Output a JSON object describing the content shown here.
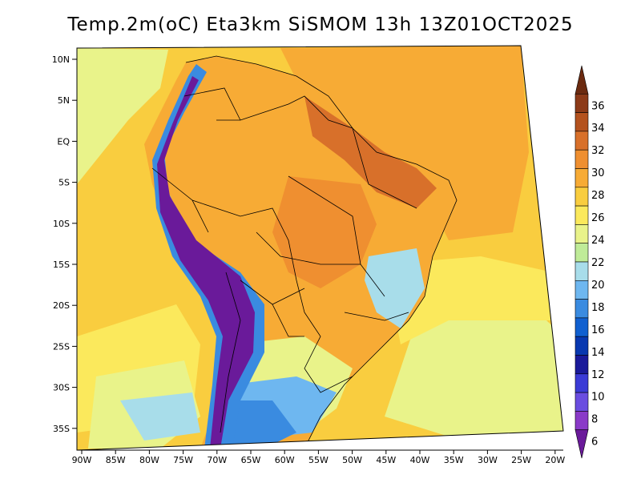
{
  "title": "Temp.2m(oC) Eta3km SiSMOM 13h 13Z01OCT2025",
  "variable": "Temp.2m",
  "units": "oC",
  "latitude_labels": [
    "10N",
    "5N",
    "EQ",
    "5S",
    "10S",
    "15S",
    "20S",
    "25S",
    "30S",
    "35S"
  ],
  "longitude_labels": [
    "90W",
    "85W",
    "80W",
    "75W",
    "70W",
    "65W",
    "60W",
    "55W",
    "50W",
    "45W",
    "40W",
    "35W",
    "30W",
    "25W",
    "20W"
  ],
  "colorbar": {
    "labels": [
      "36",
      "34",
      "32",
      "30",
      "28",
      "26",
      "24",
      "22",
      "20",
      "18",
      "16",
      "14",
      "12",
      "10",
      "8",
      "6"
    ],
    "colors": [
      "#6b2a10",
      "#8c3a18",
      "#b4521e",
      "#d8702a",
      "#ef8f30",
      "#f7ab35",
      "#f9cd3f",
      "#fbe95c",
      "#e9f38a",
      "#bfeb98",
      "#a8ddea",
      "#6eb7f0",
      "#3a8be0",
      "#1060d0",
      "#0838b0",
      "#1a1a9a",
      "#3b3bd6",
      "#6a4de0",
      "#8a3ac8",
      "#6a1a9a"
    ]
  },
  "map_colors": {
    "ocean_warm": "#f7ab35",
    "ocean_mild": "#f9cd3f",
    "ocean_cool": "#fbe95c",
    "ocean_cold": "#e9f38a",
    "interior_hot": "#ef8f30",
    "northeast_hot": "#d8702a",
    "highlands": "#a8ddea",
    "andes_cold": "#6a1a9a",
    "andes_cool": "#3a8be0",
    "south_cool": "#6eb7f0",
    "border_line": "#000000"
  }
}
